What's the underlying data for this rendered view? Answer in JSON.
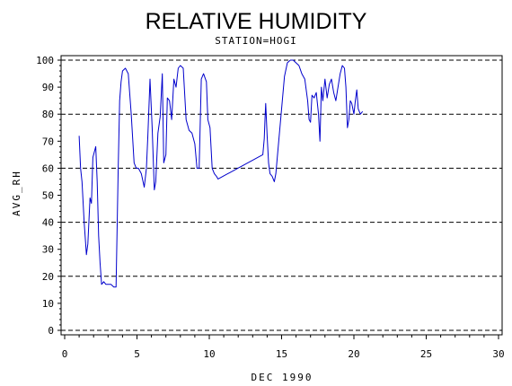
{
  "chart_data": {
    "type": "line",
    "title": "RELATIVE HUMIDITY",
    "subtitle": "STATION=HOGI",
    "xlabel": "DEC 1990",
    "ylabel": "AVG_RH",
    "xlim": [
      0,
      30
    ],
    "ylim": [
      0,
      100
    ],
    "xticks": [
      0,
      5,
      10,
      15,
      20,
      25,
      30
    ],
    "yticks": [
      0,
      10,
      20,
      30,
      40,
      50,
      60,
      70,
      80,
      90,
      100
    ],
    "reference_lines_y": [
      0,
      20,
      40,
      60,
      80,
      100
    ],
    "line_color": "#0000cc",
    "series": [
      {
        "x": [
          1.0,
          1.1,
          1.2,
          1.35,
          1.5,
          1.6,
          1.75,
          1.85,
          1.95,
          2.05,
          2.15,
          2.25,
          2.35,
          2.45,
          2.55,
          2.7,
          2.85,
          3.0,
          3.2,
          3.4,
          3.55,
          3.7,
          3.8,
          3.9,
          4.0,
          4.2,
          4.4,
          4.6,
          4.8,
          4.95,
          5.1,
          5.3,
          5.5,
          5.65,
          5.75,
          5.9,
          6.05,
          6.2,
          6.3,
          6.45,
          6.6,
          6.75,
          6.85,
          7.0,
          7.1,
          7.25,
          7.4,
          7.55,
          7.7,
          7.85,
          8.0,
          8.2,
          8.4,
          8.6,
          8.8,
          9.0,
          9.15,
          9.3,
          9.45,
          9.6,
          9.8,
          9.9,
          10.05,
          10.2,
          10.35,
          10.5,
          10.6,
          13.7,
          13.8,
          13.85,
          13.9,
          14.0,
          14.1,
          14.2,
          14.35,
          14.5,
          14.6,
          14.8,
          15.0,
          15.2,
          15.4,
          15.6,
          15.8,
          16.0,
          16.2,
          16.4,
          16.6,
          16.8,
          16.9,
          17.0,
          17.1,
          17.25,
          17.4,
          17.55,
          17.65,
          17.75,
          17.85,
          18.0,
          18.15,
          18.3,
          18.45,
          18.6,
          18.75,
          18.9,
          19.05,
          19.2,
          19.35,
          19.45,
          19.55,
          19.65,
          19.75,
          19.85,
          20.0,
          20.1,
          20.2,
          20.3,
          20.45,
          20.6
        ],
        "y": [
          72,
          60,
          55,
          40,
          28,
          32,
          49,
          47,
          64,
          66,
          68,
          55,
          35,
          25,
          17,
          18,
          17,
          17,
          17,
          16,
          16,
          60,
          85,
          92,
          96,
          97,
          95,
          80,
          62,
          60,
          60,
          58,
          53,
          60,
          72,
          93,
          75,
          52,
          55,
          73,
          79,
          95,
          62,
          65,
          86,
          85,
          78,
          93,
          90,
          97,
          98,
          97,
          78,
          74,
          73,
          69,
          60,
          60,
          93,
          95,
          92,
          78,
          75,
          60,
          58,
          57,
          56,
          65,
          71,
          78,
          84,
          72,
          62,
          58,
          57,
          55,
          58,
          70,
          82,
          94,
          99,
          100,
          100,
          99,
          98,
          95,
          93,
          85,
          78,
          77,
          87,
          86,
          88,
          80,
          70,
          90,
          85,
          93,
          86,
          91,
          93,
          88,
          85,
          90,
          95,
          98,
          97,
          90,
          75,
          78,
          85,
          84,
          80,
          85,
          89,
          82,
          80,
          81
        ]
      }
    ]
  }
}
